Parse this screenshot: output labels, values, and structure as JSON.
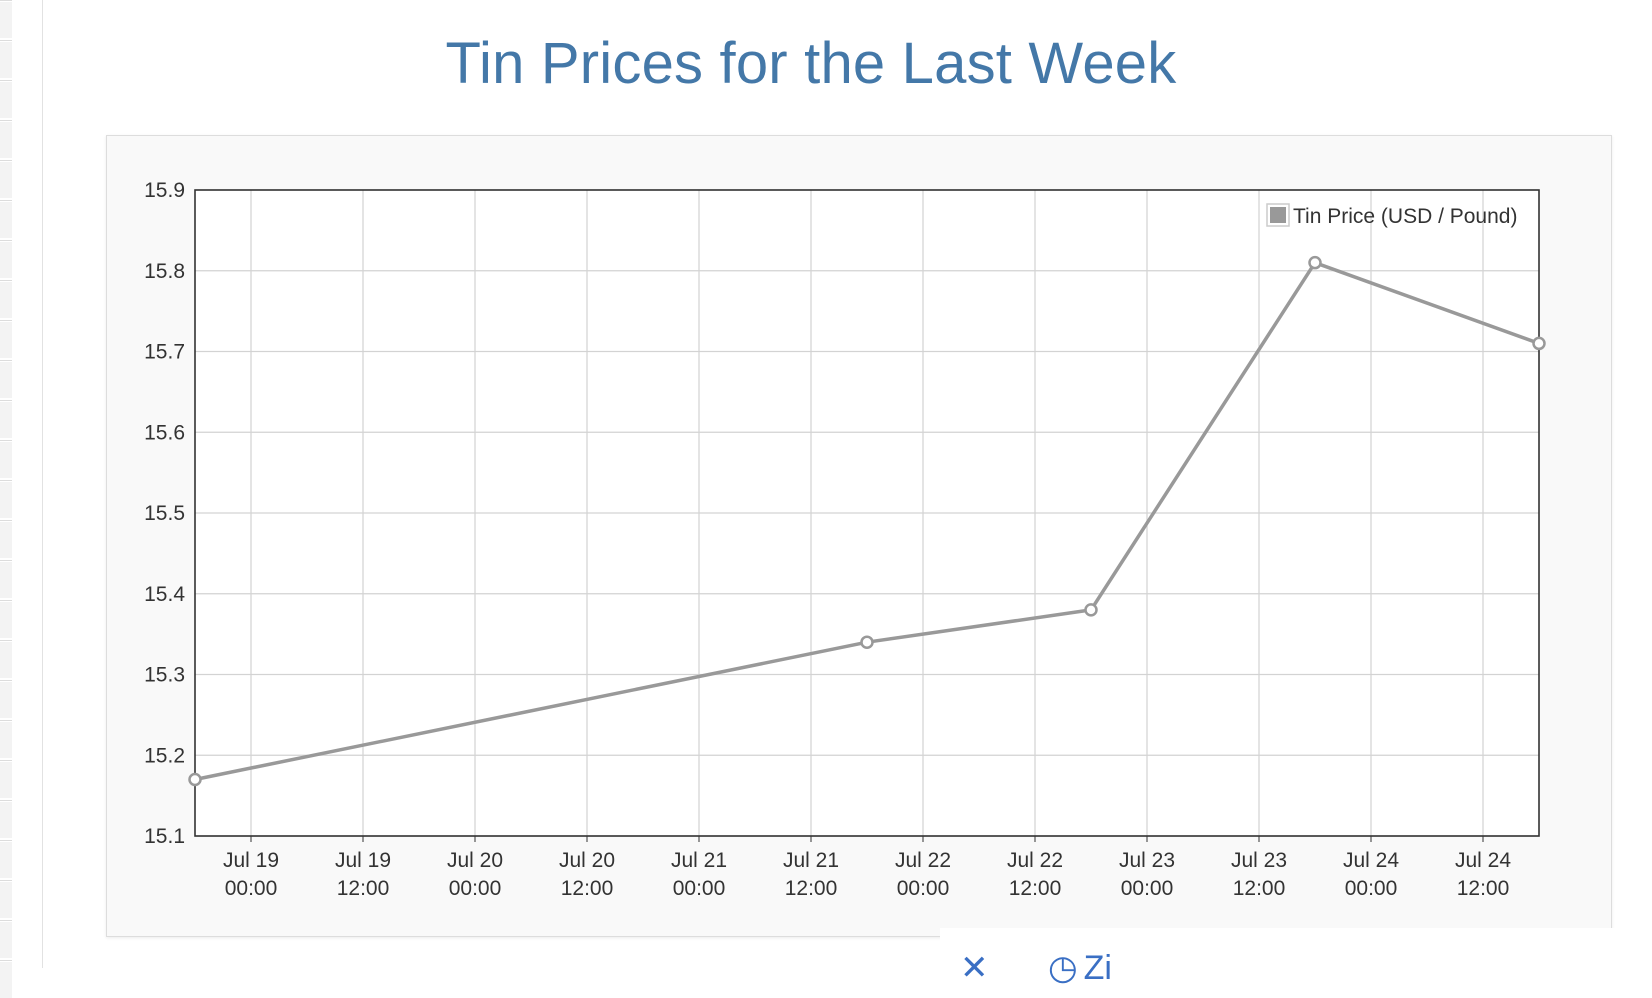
{
  "page": {
    "title": "Tin Prices for the Last Week"
  },
  "colors": {
    "title": "#4478a8",
    "series": "#999999",
    "grid": "#d3d3d3",
    "axis": "#333333",
    "panel_bg": "#f9f9f9",
    "plot_bg": "#ffffff"
  },
  "chart_data": {
    "type": "line",
    "title": "",
    "xlabel": "",
    "ylabel": "",
    "ylim": [
      15.1,
      15.9
    ],
    "xlim": [
      "2021-07-18 18:00",
      "2021-07-24 18:00"
    ],
    "y_ticks": [
      "15.1",
      "15.2",
      "15.3",
      "15.4",
      "15.5",
      "15.6",
      "15.7",
      "15.8",
      "15.9"
    ],
    "x_ticks": [
      {
        "date": "Jul 19",
        "time": "00:00"
      },
      {
        "date": "Jul 19",
        "time": "12:00"
      },
      {
        "date": "Jul 20",
        "time": "00:00"
      },
      {
        "date": "Jul 20",
        "time": "12:00"
      },
      {
        "date": "Jul 21",
        "time": "00:00"
      },
      {
        "date": "Jul 21",
        "time": "12:00"
      },
      {
        "date": "Jul 22",
        "time": "00:00"
      },
      {
        "date": "Jul 22",
        "time": "12:00"
      },
      {
        "date": "Jul 23",
        "time": "00:00"
      },
      {
        "date": "Jul 23",
        "time": "12:00"
      },
      {
        "date": "Jul 24",
        "time": "00:00"
      },
      {
        "date": "Jul 24",
        "time": "12:00"
      }
    ],
    "grid": true,
    "legend": "top-right",
    "series": [
      {
        "name": "Tin Price (USD / Pound)",
        "color": "#999999",
        "points": [
          {
            "x": "Jul 18 18:00",
            "y": 15.17
          },
          {
            "x": "Jul 21 18:00",
            "y": 15.34
          },
          {
            "x": "Jul 22 18:00",
            "y": 15.38
          },
          {
            "x": "Jul 23 18:00",
            "y": 15.81
          },
          {
            "x": "Jul 24 18:00",
            "y": 15.71
          }
        ]
      }
    ]
  },
  "toolbar": {
    "close_icon": "close-icon",
    "zoom_icon": "clock-icon",
    "zoom_label": "Zi"
  }
}
